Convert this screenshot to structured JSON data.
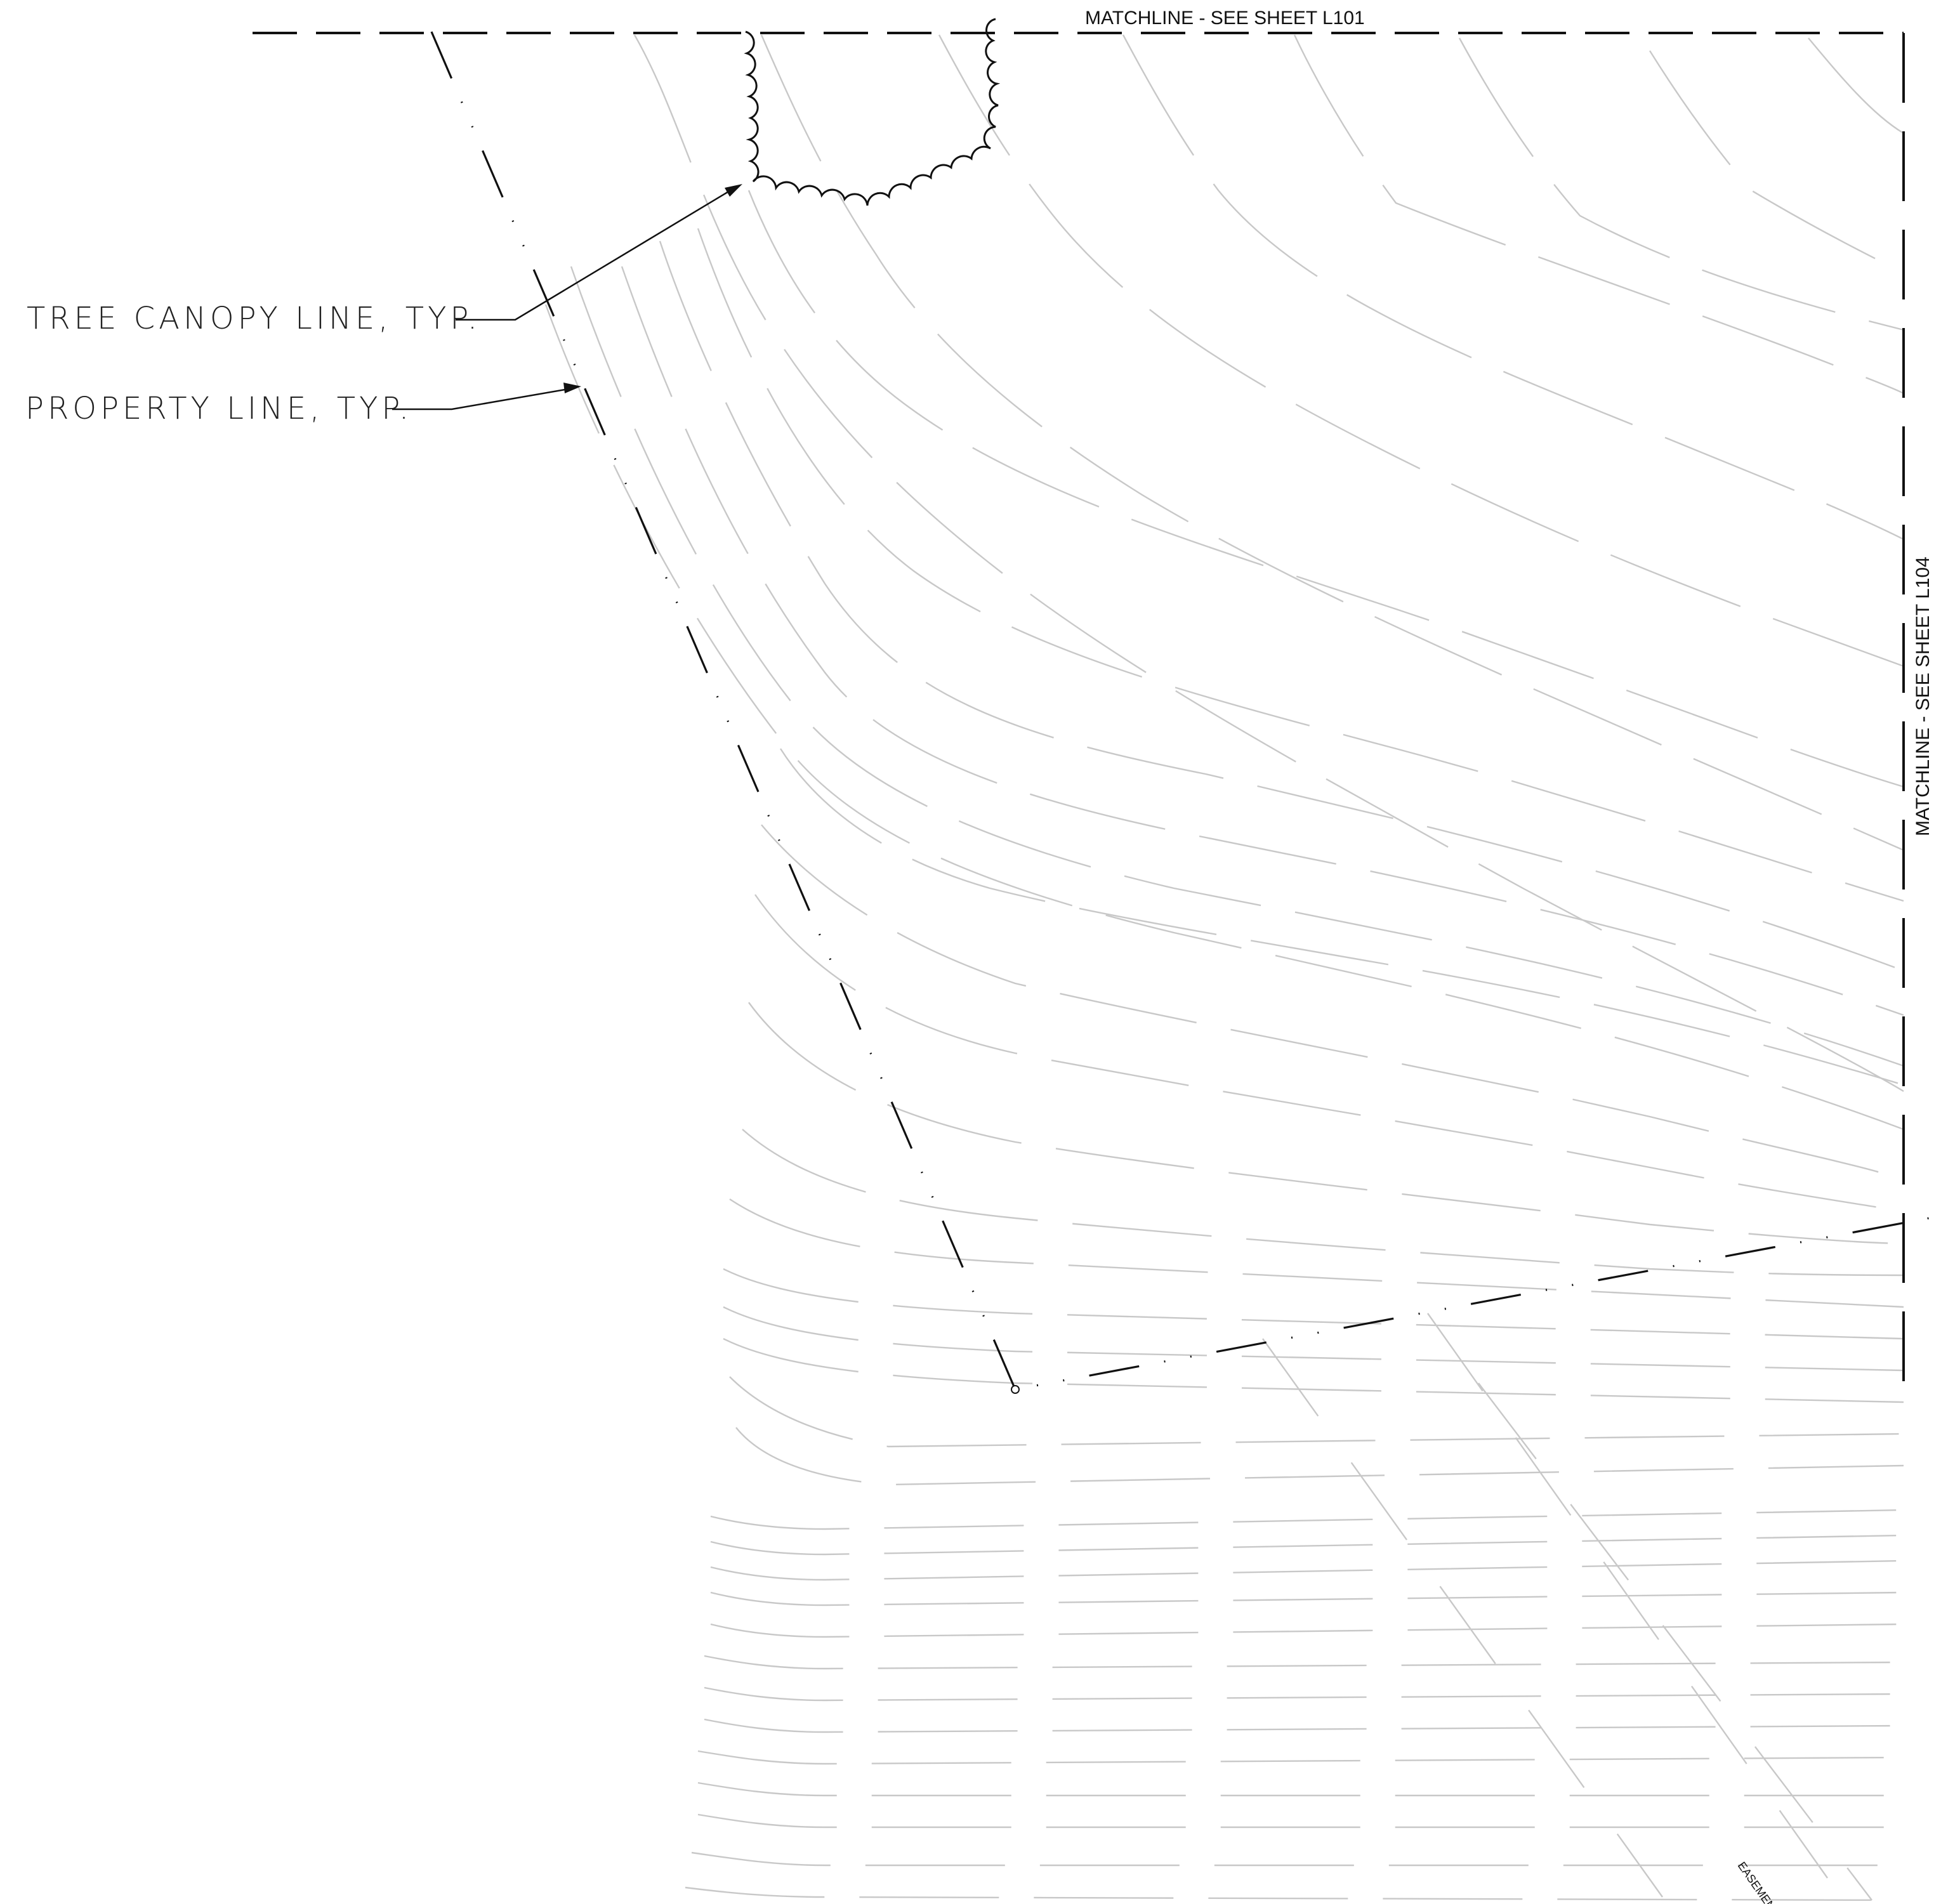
{
  "sheet": {
    "matchline_top": "MATCHLINE - SEE SHEET L101",
    "matchline_right": "MATCHLINE - SEE SHEET L104"
  },
  "callouts": {
    "tree_canopy": "TREE CANOPY LINE, TYP.",
    "property_line": "PROPERTY LINE, TYP."
  },
  "annotations": {
    "easement": "EASEMENT"
  }
}
